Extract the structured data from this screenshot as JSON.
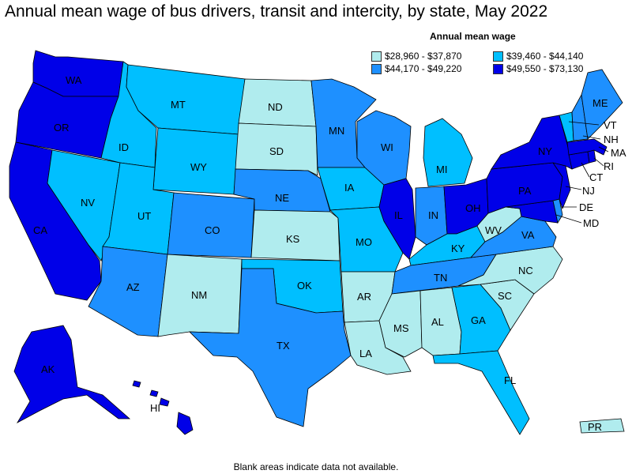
{
  "title": "Annual mean wage of bus drivers, transit and intercity, by state, May 2022",
  "legend": {
    "title": "Annual mean wage",
    "items": [
      {
        "label": "$28,960 - $37,870",
        "color": "#b0ecee"
      },
      {
        "label": "$39,460 - $44,140",
        "color": "#00bfff"
      },
      {
        "label": "$44,170 - $49,220",
        "color": "#1e90ff"
      },
      {
        "label": "$49,550 - $73,130",
        "color": "#0000e8"
      }
    ]
  },
  "footer": "Blank areas indicate data not available.",
  "states": [
    {
      "abbr": "WA",
      "tier": 3
    },
    {
      "abbr": "OR",
      "tier": 3
    },
    {
      "abbr": "CA",
      "tier": 3
    },
    {
      "abbr": "NV",
      "tier": 1
    },
    {
      "abbr": "ID",
      "tier": 1
    },
    {
      "abbr": "MT",
      "tier": 1
    },
    {
      "abbr": "WY",
      "tier": 1
    },
    {
      "abbr": "UT",
      "tier": 1
    },
    {
      "abbr": "AZ",
      "tier": 2
    },
    {
      "abbr": "CO",
      "tier": 2
    },
    {
      "abbr": "NM",
      "tier": 0
    },
    {
      "abbr": "ND",
      "tier": 0
    },
    {
      "abbr": "SD",
      "tier": 0
    },
    {
      "abbr": "NE",
      "tier": 2
    },
    {
      "abbr": "KS",
      "tier": 0
    },
    {
      "abbr": "OK",
      "tier": 1
    },
    {
      "abbr": "TX",
      "tier": 2
    },
    {
      "abbr": "MN",
      "tier": 2
    },
    {
      "abbr": "IA",
      "tier": 1
    },
    {
      "abbr": "MO",
      "tier": 1
    },
    {
      "abbr": "AR",
      "tier": 0
    },
    {
      "abbr": "LA",
      "tier": 0
    },
    {
      "abbr": "WI",
      "tier": 2
    },
    {
      "abbr": "IL",
      "tier": 3
    },
    {
      "abbr": "MI",
      "tier": 1
    },
    {
      "abbr": "IN",
      "tier": 2
    },
    {
      "abbr": "OH",
      "tier": 3
    },
    {
      "abbr": "KY",
      "tier": 1
    },
    {
      "abbr": "TN",
      "tier": 2
    },
    {
      "abbr": "MS",
      "tier": 0
    },
    {
      "abbr": "AL",
      "tier": 0
    },
    {
      "abbr": "GA",
      "tier": 1
    },
    {
      "abbr": "FL",
      "tier": 1
    },
    {
      "abbr": "SC",
      "tier": 0
    },
    {
      "abbr": "NC",
      "tier": 0
    },
    {
      "abbr": "VA",
      "tier": 2
    },
    {
      "abbr": "WV",
      "tier": 0
    },
    {
      "abbr": "MD",
      "tier": 3
    },
    {
      "abbr": "DE",
      "tier": 2
    },
    {
      "abbr": "PA",
      "tier": 3
    },
    {
      "abbr": "NJ",
      "tier": 3
    },
    {
      "abbr": "NY",
      "tier": 3
    },
    {
      "abbr": "CT",
      "tier": 3
    },
    {
      "abbr": "RI",
      "tier": 3
    },
    {
      "abbr": "MA",
      "tier": 3
    },
    {
      "abbr": "VT",
      "tier": 1
    },
    {
      "abbr": "NH",
      "tier": 2
    },
    {
      "abbr": "ME",
      "tier": 2
    },
    {
      "abbr": "AK",
      "tier": 3
    },
    {
      "abbr": "HI",
      "tier": 3
    },
    {
      "abbr": "PR",
      "tier": 0
    }
  ]
}
